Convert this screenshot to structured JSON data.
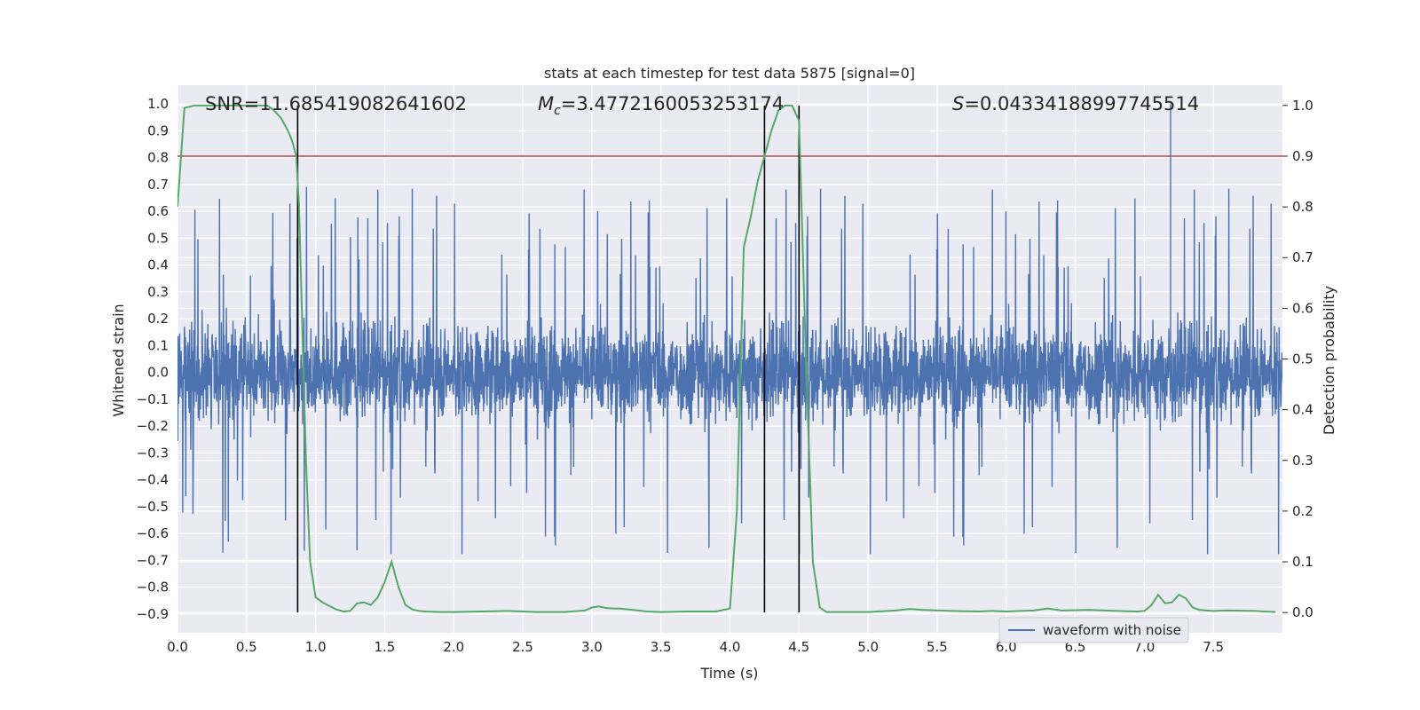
{
  "chart_data": {
    "type": "line",
    "title": "stats at each timestep for test data 5875 [signal=0]",
    "xlabel": "Time (s)",
    "ylabel": "Whitened strain",
    "y2label": "Detection probability",
    "xlim": [
      0.0,
      8.0
    ],
    "ylim": [
      -0.97,
      1.07
    ],
    "y2lim": [
      -0.04,
      1.04
    ],
    "xticks": [
      "0.0",
      "0.5",
      "1.0",
      "1.5",
      "2.0",
      "2.5",
      "3.0",
      "3.5",
      "4.0",
      "4.5",
      "5.0",
      "5.5",
      "6.0",
      "6.5",
      "7.0",
      "7.5"
    ],
    "yticks": [
      "-0.9",
      "-0.8",
      "-0.7",
      "-0.6",
      "-0.5",
      "-0.4",
      "-0.3",
      "-0.2",
      "-0.1",
      "0.0",
      "0.1",
      "0.2",
      "0.3",
      "0.4",
      "0.5",
      "0.6",
      "0.7",
      "0.8",
      "0.9",
      "1.0"
    ],
    "y2ticks": [
      "0.0",
      "0.1",
      "0.2",
      "0.3",
      "0.4",
      "0.5",
      "0.6",
      "0.7",
      "0.8",
      "0.9",
      "1.0"
    ],
    "grid": true,
    "legend_position": "lower-right",
    "annotations": {
      "snr": "SNR=11.685419082641602",
      "mc_symbol": "M",
      "mc_sub": "c",
      "mc_value": "=3.4772160053253174",
      "s_symbol": "S",
      "s_value": "=0.04334188997745514"
    },
    "threshold": {
      "axis": "right",
      "value": 0.9,
      "color": "#c44e52"
    },
    "vertical_lines": [
      0.87,
      4.25,
      4.5
    ],
    "series": [
      {
        "name": "waveform with noise",
        "axis": "left",
        "color": "#4c72b0",
        "style": "dense-noise",
        "envelope_typical": [
          -0.3,
          0.3
        ],
        "peak_max": 1.0,
        "peak_max_time": 7.19,
        "peak_min": -0.87
      },
      {
        "axis": "right",
        "color": "#55a868",
        "x": [
          0.0,
          0.05,
          0.12,
          0.2,
          0.3,
          0.4,
          0.5,
          0.6,
          0.65,
          0.7,
          0.75,
          0.8,
          0.83,
          0.86,
          0.88,
          0.9,
          0.93,
          0.96,
          1.0,
          1.05,
          1.1,
          1.15,
          1.2,
          1.25,
          1.3,
          1.35,
          1.4,
          1.45,
          1.5,
          1.55,
          1.6,
          1.65,
          1.7,
          1.75,
          1.8,
          1.9,
          2.0,
          2.2,
          2.4,
          2.5,
          2.6,
          2.8,
          2.95,
          3.0,
          3.05,
          3.1,
          3.15,
          3.2,
          3.3,
          3.4,
          3.5,
          3.7,
          3.9,
          4.0,
          4.05,
          4.1,
          4.15,
          4.2,
          4.25,
          4.3,
          4.35,
          4.4,
          4.45,
          4.5,
          4.55,
          4.6,
          4.65,
          4.7,
          4.75,
          4.8,
          5.0,
          5.2,
          5.3,
          5.4,
          5.6,
          5.8,
          5.9,
          6.0,
          6.2,
          6.3,
          6.4,
          6.6,
          6.8,
          6.95,
          7.0,
          7.05,
          7.1,
          7.15,
          7.2,
          7.25,
          7.3,
          7.35,
          7.4,
          7.45,
          7.5,
          7.6,
          7.8,
          7.95
        ],
        "values": [
          0.8,
          0.995,
          1.0,
          1.0,
          1.0,
          1.0,
          1.0,
          1.0,
          1.0,
          0.99,
          0.975,
          0.95,
          0.93,
          0.9,
          0.8,
          0.6,
          0.3,
          0.1,
          0.03,
          0.02,
          0.013,
          0.006,
          0.002,
          0.003,
          0.018,
          0.02,
          0.015,
          0.03,
          0.06,
          0.1,
          0.05,
          0.015,
          0.006,
          0.003,
          0.002,
          0.001,
          0.001,
          0.002,
          0.003,
          0.002,
          0.001,
          0.001,
          0.004,
          0.01,
          0.012,
          0.009,
          0.008,
          0.008,
          0.005,
          0.002,
          0.001,
          0.002,
          0.002,
          0.008,
          0.2,
          0.72,
          0.78,
          0.85,
          0.9,
          0.95,
          0.99,
          1.0,
          1.0,
          0.97,
          0.5,
          0.1,
          0.01,
          0.001,
          0.001,
          0.001,
          0.001,
          0.004,
          0.007,
          0.005,
          0.003,
          0.002,
          0.003,
          0.002,
          0.004,
          0.008,
          0.004,
          0.005,
          0.003,
          0.002,
          0.003,
          0.014,
          0.035,
          0.018,
          0.02,
          0.035,
          0.028,
          0.01,
          0.005,
          0.004,
          0.003,
          0.004,
          0.003,
          0.001
        ]
      }
    ]
  }
}
